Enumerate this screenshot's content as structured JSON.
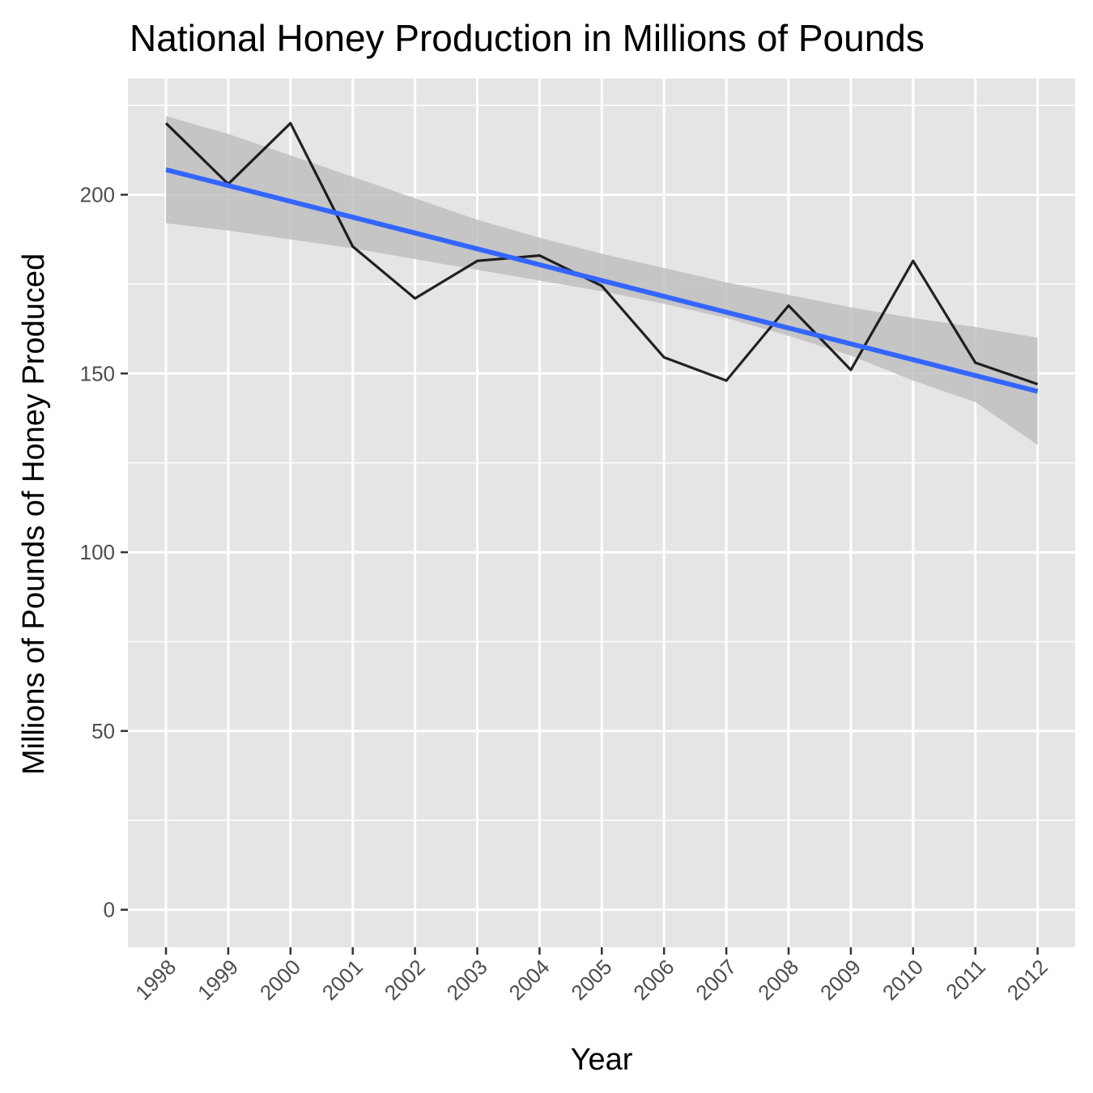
{
  "chart_data": {
    "type": "line",
    "title": "National Honey Production in Millions of Pounds",
    "xlabel": "Year",
    "ylabel": "Millions of Pounds of Honey Produced",
    "x": [
      "1998",
      "1999",
      "2000",
      "2001",
      "2002",
      "2003",
      "2004",
      "2005",
      "2006",
      "2007",
      "2008",
      "2009",
      "2010",
      "2011",
      "2012"
    ],
    "series": [
      {
        "values": [
          220,
          203,
          220,
          185.5,
          171,
          181.5,
          183,
          174.5,
          154.5,
          148,
          169,
          151,
          181.5,
          153,
          147
        ]
      }
    ],
    "trend": {
      "method": "linear",
      "start": 207,
      "end": 145,
      "ci_lower": [
        192,
        190,
        187.5,
        185,
        182,
        179,
        176,
        173,
        169.5,
        165.5,
        160.5,
        155,
        148,
        142,
        130
      ],
      "ci_upper": [
        222,
        217,
        211,
        205,
        199,
        193,
        188,
        183.5,
        179.5,
        175.5,
        172,
        168.5,
        165.5,
        163,
        160
      ],
      "line_color": "#3366ff",
      "band_color": "#bfbfbf"
    },
    "y_ticks": [
      0,
      50,
      100,
      150,
      200
    ],
    "ylim": [
      -10.5,
      232.5
    ],
    "grid": true,
    "panel_background": "#e5e5e5",
    "line_color": "#000000"
  }
}
